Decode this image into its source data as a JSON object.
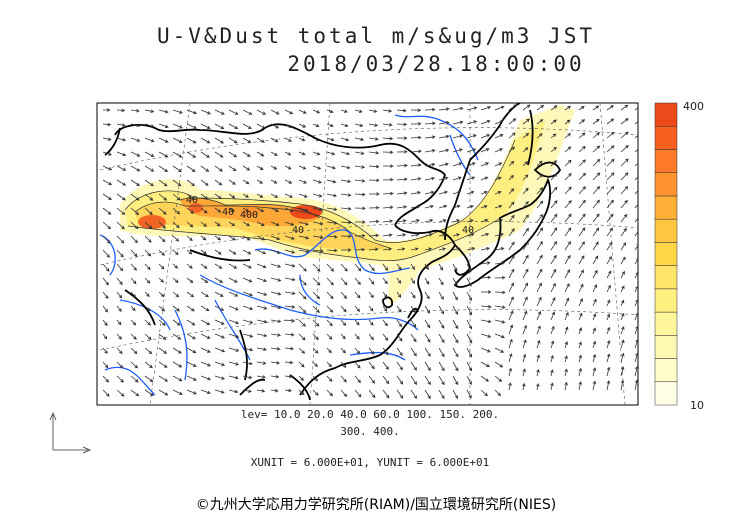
{
  "title": {
    "line1": "U-V&Dust total m/s&ug/m3 JST",
    "line2": "2018/03/28.18:00:00"
  },
  "levels": {
    "line1": "lev= 10.0 20.0 40.0 60.0 100. 150. 200.",
    "line2": "300. 400."
  },
  "units_text": "XUNIT = 6.000E+01, YUNIT = 6.000E+01",
  "colorbar": {
    "max_label": "400",
    "min_label": "10",
    "colors": [
      "#ffffe6",
      "#fffccc",
      "#fff8b0",
      "#fff59a",
      "#ffef80",
      "#ffe66a",
      "#ffd84a",
      "#ffc640",
      "#ffae36",
      "#ff9430",
      "#ff7a2a",
      "#f86022",
      "#ec4a1a"
    ]
  },
  "contour_labels": [
    "40",
    "40",
    "40",
    "400",
    "40"
  ],
  "copyright": "©九州大学応用力学研究所(RIAM)/国立環境研究所(NIES)",
  "colors": {
    "coast": "#000000",
    "river": "#1f5fff",
    "arrow": "#333333"
  }
}
